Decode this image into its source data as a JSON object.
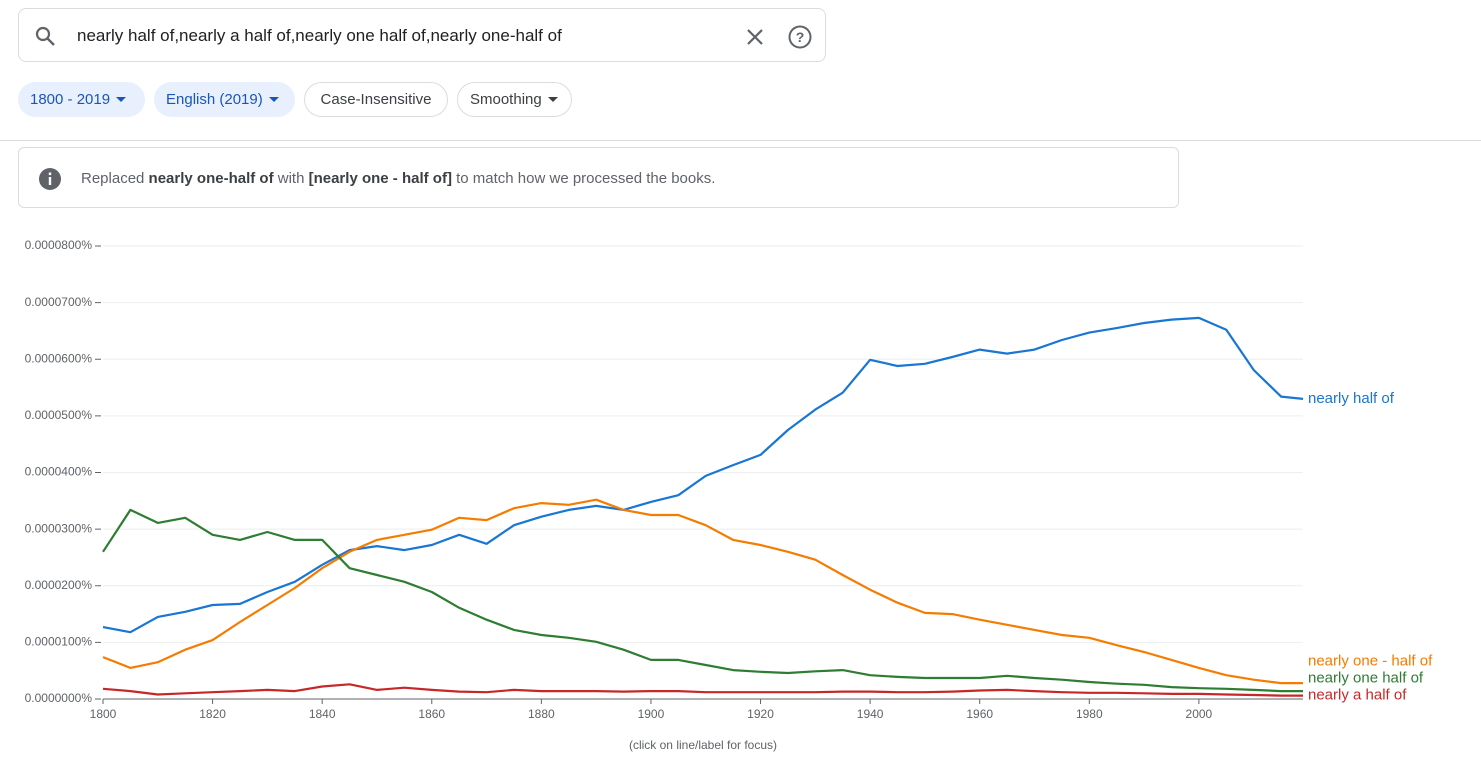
{
  "search": {
    "query": "nearly half of,nearly a half of,nearly one half of,nearly one-half of"
  },
  "chips": [
    "1800 - 2019",
    "English (2019)",
    "Case-Insensitive",
    "Smoothing"
  ],
  "notice": {
    "parts": [
      "Replaced ",
      "nearly one-half of",
      " with ",
      "[nearly one - half of]",
      " to match how we processed the books."
    ]
  },
  "chart_data": {
    "type": "line",
    "caption": "(click on line/label for focus)",
    "x": [
      1800,
      1805,
      1810,
      1815,
      1820,
      1825,
      1830,
      1835,
      1840,
      1845,
      1850,
      1855,
      1860,
      1865,
      1870,
      1875,
      1880,
      1885,
      1890,
      1895,
      1900,
      1905,
      1910,
      1915,
      1920,
      1925,
      1930,
      1935,
      1940,
      1945,
      1950,
      1955,
      1960,
      1965,
      1970,
      1975,
      1980,
      1985,
      1990,
      1995,
      2000,
      2005,
      2010,
      2015,
      2019
    ],
    "xlim": [
      1800,
      2019
    ],
    "xticks": [
      1800,
      1820,
      1840,
      1860,
      1880,
      1900,
      1920,
      1940,
      1960,
      1980,
      2000
    ],
    "ylim": [
      0,
      8e-05
    ],
    "yticks": [
      {
        "value": 0,
        "label": "0.0000000%"
      },
      {
        "value": 1e-05,
        "label": "0.0000100%"
      },
      {
        "value": 2e-05,
        "label": "0.0000200%"
      },
      {
        "value": 3e-05,
        "label": "0.0000300%"
      },
      {
        "value": 4e-05,
        "label": "0.0000400%"
      },
      {
        "value": 5e-05,
        "label": "0.0000500%"
      },
      {
        "value": 6e-05,
        "label": "0.0000600%"
      },
      {
        "value": 7e-05,
        "label": "0.0000700%"
      },
      {
        "value": 8e-05,
        "label": "0.0000800%"
      }
    ],
    "grid": true,
    "series": [
      {
        "name": "nearly half of",
        "color": "#1976d2",
        "values": [
          1.27e-05,
          1.18e-05,
          1.45e-05,
          1.54e-05,
          1.66e-05,
          1.68e-05,
          1.89e-05,
          2.07e-05,
          2.37e-05,
          2.63e-05,
          2.7e-05,
          2.63e-05,
          2.72e-05,
          2.9e-05,
          2.74e-05,
          3.07e-05,
          3.22e-05,
          3.34e-05,
          3.41e-05,
          3.34e-05,
          3.48e-05,
          3.6e-05,
          3.94e-05,
          4.13e-05,
          4.31e-05,
          4.75e-05,
          5.11e-05,
          5.41e-05,
          5.99e-05,
          5.88e-05,
          5.92e-05,
          6.04e-05,
          6.17e-05,
          6.1e-05,
          6.17e-05,
          6.34e-05,
          6.47e-05,
          6.55e-05,
          6.64e-05,
          6.7e-05,
          6.73e-05,
          6.52e-05,
          5.81e-05,
          5.34e-05,
          5.3e-05
        ]
      },
      {
        "name": "nearly one - half of",
        "color": "#f57c00",
        "values": [
          7.4e-06,
          5.5e-06,
          6.5e-06,
          8.7e-06,
          1.04e-05,
          1.36e-05,
          1.66e-05,
          1.96e-05,
          2.31e-05,
          2.6e-05,
          2.81e-05,
          2.9e-05,
          2.99e-05,
          3.2e-05,
          3.16e-05,
          3.37e-05,
          3.46e-05,
          3.43e-05,
          3.52e-05,
          3.34e-05,
          3.25e-05,
          3.25e-05,
          3.07e-05,
          2.81e-05,
          2.72e-05,
          2.6e-05,
          2.46e-05,
          2.19e-05,
          1.93e-05,
          1.7e-05,
          1.52e-05,
          1.5e-05,
          1.4e-05,
          1.31e-05,
          1.22e-05,
          1.13e-05,
          1.08e-05,
          9.5e-06,
          8.3e-06,
          6.9e-06,
          5.5e-06,
          4.2e-06,
          3.4e-06,
          2.8e-06,
          2.8e-06
        ]
      },
      {
        "name": "nearly one half of",
        "color": "#2e7d32",
        "values": [
          2.6e-05,
          3.34e-05,
          3.11e-05,
          3.2e-05,
          2.9e-05,
          2.81e-05,
          2.95e-05,
          2.81e-05,
          2.81e-05,
          2.31e-05,
          2.19e-05,
          2.07e-05,
          1.89e-05,
          1.61e-05,
          1.4e-05,
          1.22e-05,
          1.13e-05,
          1.08e-05,
          1.01e-05,
          8.7e-06,
          6.9e-06,
          6.9e-06,
          6e-06,
          5.1e-06,
          4.8e-06,
          4.6e-06,
          4.9e-06,
          5.1e-06,
          4.2e-06,
          3.9e-06,
          3.7e-06,
          3.7e-06,
          3.7e-06,
          4.1e-06,
          3.7e-06,
          3.4e-06,
          3e-06,
          2.7e-06,
          2.5e-06,
          2.1e-06,
          1.9e-06,
          1.8e-06,
          1.6e-06,
          1.4e-06,
          1.4e-06
        ]
      },
      {
        "name": "nearly a half of",
        "color": "#c62828",
        "values": [
          1.8e-06,
          1.4e-06,
          8e-07,
          1e-06,
          1.2e-06,
          1.4e-06,
          1.6e-06,
          1.4e-06,
          2.2e-06,
          2.6e-06,
          1.6e-06,
          2e-06,
          1.6e-06,
          1.3e-06,
          1.2e-06,
          1.6e-06,
          1.4e-06,
          1.4e-06,
          1.4e-06,
          1.3e-06,
          1.4e-06,
          1.4e-06,
          1.2e-06,
          1.2e-06,
          1.2e-06,
          1.2e-06,
          1.2e-06,
          1.3e-06,
          1.3e-06,
          1.2e-06,
          1.2e-06,
          1.3e-06,
          1.5e-06,
          1.6e-06,
          1.4e-06,
          1.2e-06,
          1.1e-06,
          1.1e-06,
          1e-06,
          9e-07,
          9e-07,
          8e-07,
          7e-07,
          6e-07,
          6e-07
        ]
      }
    ]
  }
}
